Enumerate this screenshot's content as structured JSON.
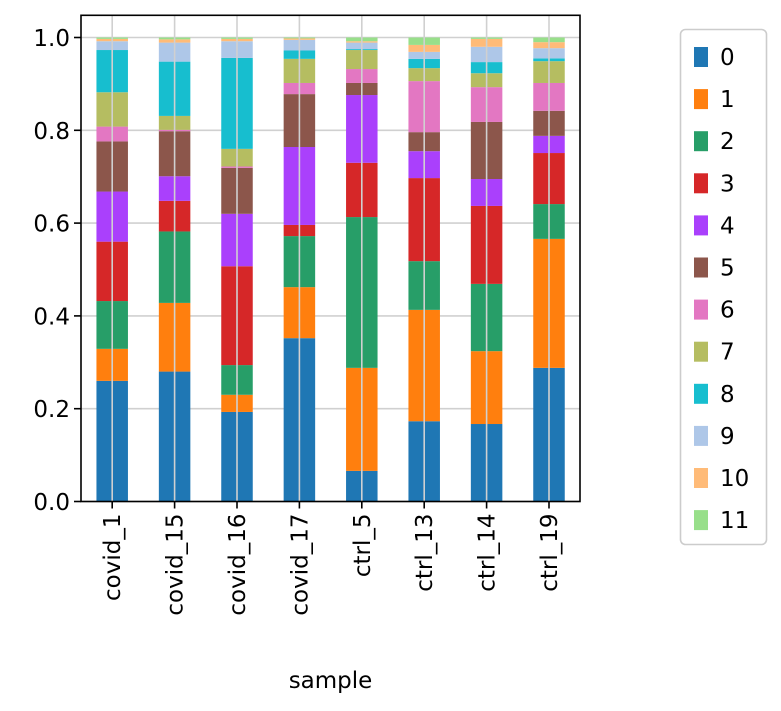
{
  "chart_data": {
    "type": "bar",
    "stacked": true,
    "title": "",
    "xlabel": "sample",
    "ylabel": "",
    "ylim": [
      0,
      1.05
    ],
    "yticks": [
      "0.0",
      "0.2",
      "0.4",
      "0.6",
      "0.8",
      "1.0"
    ],
    "ytick_values": [
      0,
      0.2,
      0.4,
      0.6,
      0.8,
      1.0
    ],
    "grid": true,
    "legend_position": "outside-right",
    "categories": [
      "covid_1",
      "covid_15",
      "covid_16",
      "covid_17",
      "ctrl_5",
      "ctrl_13",
      "ctrl_14",
      "ctrl_19"
    ],
    "series": [
      {
        "name": "0",
        "color": "#1f77b4",
        "values": [
          0.26,
          0.28,
          0.193,
          0.352,
          0.066,
          0.173,
          0.167,
          0.288
        ]
      },
      {
        "name": "1",
        "color": "#ff7f0e",
        "values": [
          0.069,
          0.148,
          0.037,
          0.11,
          0.222,
          0.24,
          0.157,
          0.278
        ]
      },
      {
        "name": "2",
        "color": "#279e68",
        "values": [
          0.103,
          0.154,
          0.064,
          0.11,
          0.325,
          0.105,
          0.145,
          0.075
        ]
      },
      {
        "name": "3",
        "color": "#d62728",
        "values": [
          0.128,
          0.066,
          0.213,
          0.024,
          0.117,
          0.179,
          0.168,
          0.11
        ]
      },
      {
        "name": "4",
        "color": "#aa40fc",
        "values": [
          0.108,
          0.053,
          0.113,
          0.168,
          0.146,
          0.058,
          0.058,
          0.037
        ]
      },
      {
        "name": "5",
        "color": "#8c564b",
        "values": [
          0.108,
          0.097,
          0.099,
          0.114,
          0.026,
          0.041,
          0.123,
          0.054
        ]
      },
      {
        "name": "6",
        "color": "#e377c2",
        "values": [
          0.032,
          0.003,
          0.003,
          0.024,
          0.03,
          0.11,
          0.075,
          0.06
        ]
      },
      {
        "name": "7",
        "color": "#b5bd61",
        "values": [
          0.074,
          0.03,
          0.038,
          0.052,
          0.041,
          0.028,
          0.03,
          0.047
        ]
      },
      {
        "name": "8",
        "color": "#17becf",
        "values": [
          0.091,
          0.117,
          0.196,
          0.018,
          0.002,
          0.02,
          0.024,
          0.006
        ]
      },
      {
        "name": "9",
        "color": "#aec7e8",
        "values": [
          0.019,
          0.041,
          0.036,
          0.023,
          0.014,
          0.015,
          0.033,
          0.022
        ]
      },
      {
        "name": "10",
        "color": "#ffbb78",
        "values": [
          0.005,
          0.007,
          0.005,
          0.003,
          0.003,
          0.015,
          0.017,
          0.013
        ]
      },
      {
        "name": "11",
        "color": "#98df8a",
        "values": [
          0.003,
          0.004,
          0.003,
          0.002,
          0.008,
          0.016,
          0.003,
          0.01
        ]
      }
    ]
  }
}
